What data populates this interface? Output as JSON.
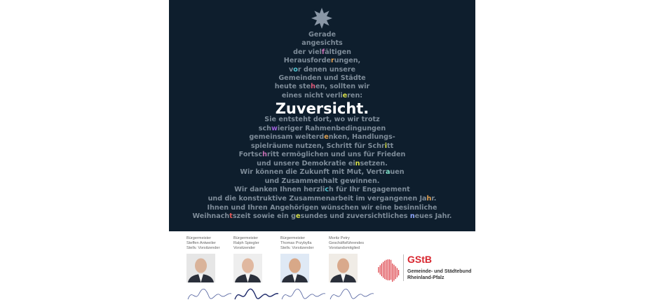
{
  "poem_lines": [
    {
      "pre": "Gerade",
      "hl": "",
      "post": "",
      "color": ""
    },
    {
      "pre": "angesichts",
      "hl": "",
      "post": "",
      "color": ""
    },
    {
      "pre": "der viel",
      "hl": "f",
      "post": "ältigen",
      "color": "#c66fb4"
    },
    {
      "pre": "Herausforde",
      "hl": "r",
      "post": "ungen,",
      "color": "#e0a050"
    },
    {
      "pre": "v",
      "hl": "o",
      "post": "r denen unsere",
      "color": "#4fc3d0"
    },
    {
      "pre": "Gemeinden und Städte",
      "hl": "",
      "post": "",
      "color": ""
    },
    {
      "pre": "heute ste",
      "hl": "h",
      "post": "en, sollten wir",
      "color": "#e05a7a"
    },
    {
      "pre": "eines nicht verli",
      "hl": "e",
      "post": "ren:",
      "color": "#d9e04a"
    }
  ],
  "title": "Zuversicht.",
  "body_lines": [
    {
      "pre": "Sie entsteht dort, wo wir trotz",
      "hl": "",
      "post": "",
      "color": ""
    },
    {
      "pre": "sch",
      "hl": "w",
      "post": "ieriger Rahmenbedingungen",
      "color": "#9a5fd6"
    },
    {
      "pre": "gemeinsam weiterd",
      "hl": "e",
      "post": "nken, Handlungs-",
      "color": "#e0a050"
    },
    {
      "pre": "spielräume nutzen, Schritt für Schr",
      "hl": "i",
      "post": "tt",
      "color": "#d9e04a"
    },
    {
      "pre": "Fortsc",
      "hl": "h",
      "post": "ritt ermöglichen und uns für Frieden",
      "color": "#c66fb4"
    },
    {
      "pre": "und unsere Demokratie ei",
      "hl": "n",
      "post": "setzen.",
      "color": "#d9e04a"
    },
    {
      "pre": "Wir können die Zukunft mit Mut, Vertr",
      "hl": "a",
      "post": "uen",
      "color": "#7fe0c8"
    },
    {
      "pre": "und Zusammenhalt gewinnen.",
      "hl": "",
      "post": "",
      "color": ""
    },
    {
      "pre": "Wir danken Ihnen herzli",
      "hl": "c",
      "post": "h für Ihr Engagement",
      "color": "#4fc3d0"
    },
    {
      "pre": "und die konstruktive Zusammenarbeit im vergangenen Ja",
      "hl": "h",
      "post": "r.",
      "color": "#e0a050"
    },
    {
      "pre": "Ihnen und Ihren Angehörigen wünschen wir eine besinnliche",
      "hl": "",
      "post": "",
      "color": ""
    },
    {
      "pre": "Weihnach",
      "hl": "t",
      "post": "szeit sowie ein g",
      "color": "#e05a5a",
      "hl2": "e",
      "post2": "sundes und zuversichtliches ",
      "color2": "#d9e04a",
      "hl3": "n",
      "post3": "eues Jahr.",
      "color3": "#8fa8ff"
    }
  ],
  "people": [
    {
      "line1": "Bürgermeister",
      "line2": "Steffen Antweiler",
      "line3": "Stellv. Vorsitzender",
      "signature": "S. Antweiler"
    },
    {
      "line1": "Bürgermeister",
      "line2": "Ralph Spiegler",
      "line3": "Vorsitzender",
      "signature": "Ralph Spiegler"
    },
    {
      "line1": "Bürgermeister",
      "line2": "Thomas Przybylla",
      "line3": "Stellv. Vorsitzender",
      "signature": "Thomas Przybylla"
    },
    {
      "line1": "Moritz Petry",
      "line2": "Geschäftsführendes",
      "line3": "Vorstandsmitglied",
      "signature": "Moritz Petry"
    }
  ],
  "logo": {
    "abbr": "GStB",
    "line1": "Gemeinde- und Städtebund",
    "line2": "Rheinland-Pfalz"
  },
  "colors": {
    "background": "#0e1e2d",
    "text": "#7e8c99",
    "brand": "#d8262f"
  }
}
